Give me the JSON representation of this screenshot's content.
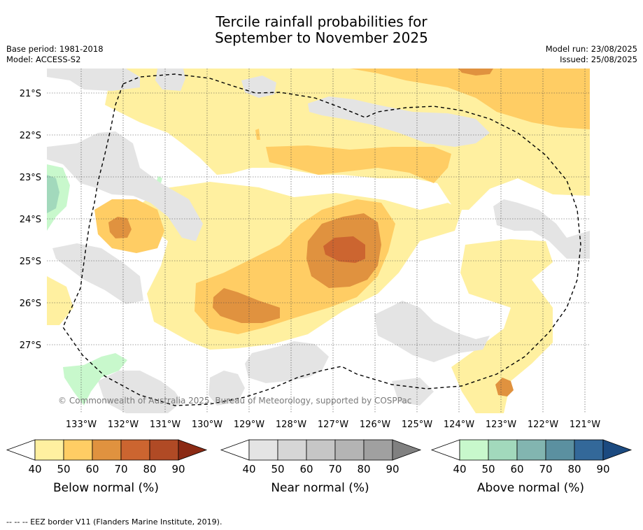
{
  "title_line1": "Tercile rainfall probabilities for",
  "title_line2": "September to November 2025",
  "base_period": "Base period: 1981-2018",
  "model": "Model: ACCESS-S2",
  "model_run": "Model run: 23/08/2025",
  "issued": "Issued: 25/08/2025",
  "copyright": "© Commonwealth of Australia 2025, Bureau of Meteorology, supported by COSPPac",
  "lat_labels": [
    "21°S",
    "22°S",
    "23°S",
    "24°S",
    "25°S",
    "26°S",
    "27°S"
  ],
  "lon_labels": [
    "133°W",
    "132°W",
    "131°W",
    "130°W",
    "129°W",
    "128°W",
    "127°W",
    "126°W",
    "125°W",
    "124°W",
    "123°W",
    "122°W",
    "121°W"
  ],
  "colorbars": [
    {
      "title": "Below normal (%)",
      "ticks": [
        "40",
        "50",
        "60",
        "70",
        "80",
        "90"
      ],
      "colors": [
        "#fff0a0",
        "#ffcd64",
        "#e0923f",
        "#cc6530",
        "#b04a25",
        "#8b2a14"
      ]
    },
    {
      "title": "Near normal (%)",
      "ticks": [
        "40",
        "50",
        "60",
        "70",
        "80",
        "90"
      ],
      "colors": [
        "#e4e4e4",
        "#d6d6d6",
        "#c6c6c6",
        "#b4b4b4",
        "#a0a0a0",
        "#808080"
      ]
    },
    {
      "title": "Above normal (%)",
      "ticks": [
        "40",
        "50",
        "60",
        "70",
        "80",
        "90"
      ],
      "colors": [
        "#c8f8cc",
        "#a2d9bc",
        "#82b5b0",
        "#5b90a0",
        "#336899",
        "#1b4a80"
      ]
    }
  ],
  "footer": "--  --  -- EEZ border V11 (Flanders Marine Institute, 2019)."
}
